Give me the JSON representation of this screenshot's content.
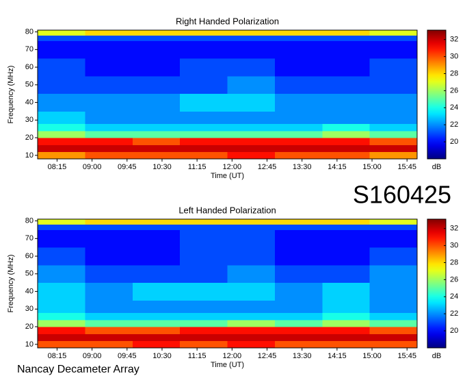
{
  "station_id": "S160425",
  "footer": "Nancay Decameter Array",
  "chart_data": [
    {
      "type": "heatmap",
      "title": "Right Handed Polarization",
      "xlabel": "Time (UT)",
      "ylabel": "Frequency (MHz)",
      "colormap": "jet",
      "colorbar_label": "dB",
      "xbins": [
        470,
        531,
        592,
        653,
        714,
        775,
        836,
        897,
        958
      ],
      "ybins": [
        8,
        12,
        16,
        20,
        24,
        28,
        35,
        45,
        55,
        65,
        75,
        78,
        81
      ],
      "values": [
        [
          29,
          30,
          30,
          30,
          31,
          30,
          30,
          29
        ],
        [
          32,
          32,
          32,
          32,
          32,
          32,
          32,
          32
        ],
        [
          31,
          31,
          30,
          31,
          31,
          31,
          31,
          30
        ],
        [
          26,
          25,
          25,
          25,
          25,
          25,
          26,
          25
        ],
        [
          24,
          23,
          23,
          23,
          23,
          23,
          24,
          23
        ],
        [
          23,
          22,
          22,
          22,
          22,
          22,
          22,
          22
        ],
        [
          22,
          22,
          22,
          23,
          23,
          22,
          22,
          22
        ],
        [
          21,
          21,
          21,
          21,
          22,
          21,
          21,
          21
        ],
        [
          21,
          20,
          20,
          21,
          21,
          20,
          20,
          21
        ],
        [
          20,
          20,
          20,
          20,
          20,
          20,
          20,
          20
        ],
        [
          21,
          21,
          21,
          21,
          21,
          21,
          21,
          21
        ],
        [
          27,
          28,
          28,
          28,
          28,
          28,
          28,
          27
        ]
      ],
      "xlim": [
        470,
        958
      ],
      "ylim": [
        8,
        81
      ],
      "xticks": [
        {
          "value": 495,
          "label": "08:15"
        },
        {
          "value": 540,
          "label": "09:00"
        },
        {
          "value": 585,
          "label": "09:45"
        },
        {
          "value": 630,
          "label": "10:30"
        },
        {
          "value": 675,
          "label": "11:15"
        },
        {
          "value": 720,
          "label": "12:00"
        },
        {
          "value": 765,
          "label": "12:45"
        },
        {
          "value": 810,
          "label": "13:30"
        },
        {
          "value": 855,
          "label": "14:15"
        },
        {
          "value": 900,
          "label": "15:00"
        },
        {
          "value": 945,
          "label": "15:45"
        }
      ],
      "yticks": [
        10,
        20,
        30,
        40,
        50,
        60,
        70,
        80
      ],
      "clim": [
        18,
        33.1
      ],
      "cticks": [
        20,
        22,
        24,
        26,
        28,
        30,
        32
      ]
    },
    {
      "type": "heatmap",
      "title": "Left Handed Polarization",
      "xlabel": "Time (UT)",
      "ylabel": "Frequency (MHz)",
      "colormap": "jet",
      "colorbar_label": "dB",
      "xbins": [
        470,
        531,
        592,
        653,
        714,
        775,
        836,
        897,
        958
      ],
      "ybins": [
        8,
        12,
        16,
        20,
        24,
        28,
        35,
        45,
        55,
        65,
        75,
        78,
        81
      ],
      "values": [
        [
          30,
          30,
          31,
          30,
          31,
          30,
          30,
          30
        ],
        [
          32,
          32,
          32,
          32,
          32,
          32,
          32,
          32
        ],
        [
          31,
          30,
          30,
          31,
          31,
          31,
          31,
          30
        ],
        [
          26,
          25,
          25,
          25,
          26,
          25,
          26,
          25
        ],
        [
          24,
          23,
          23,
          23,
          23,
          23,
          24,
          23
        ],
        [
          23,
          22,
          22,
          22,
          22,
          22,
          23,
          22
        ],
        [
          23,
          22,
          23,
          23,
          23,
          22,
          23,
          22
        ],
        [
          22,
          21,
          21,
          21,
          22,
          21,
          21,
          22
        ],
        [
          21,
          20,
          20,
          21,
          21,
          20,
          20,
          21
        ],
        [
          20,
          20,
          20,
          21,
          21,
          20,
          20,
          20
        ],
        [
          21,
          21,
          21,
          21,
          21,
          21,
          21,
          21
        ],
        [
          27,
          28,
          28,
          28,
          28,
          28,
          28,
          27
        ]
      ],
      "xlim": [
        470,
        958
      ],
      "ylim": [
        8,
        81
      ],
      "xticks": [
        {
          "value": 495,
          "label": "08:15"
        },
        {
          "value": 540,
          "label": "09:00"
        },
        {
          "value": 585,
          "label": "09:45"
        },
        {
          "value": 630,
          "label": "10:30"
        },
        {
          "value": 675,
          "label": "11:15"
        },
        {
          "value": 720,
          "label": "12:00"
        },
        {
          "value": 765,
          "label": "12:45"
        },
        {
          "value": 810,
          "label": "13:30"
        },
        {
          "value": 855,
          "label": "14:15"
        },
        {
          "value": 900,
          "label": "15:00"
        },
        {
          "value": 945,
          "label": "15:45"
        }
      ],
      "yticks": [
        10,
        20,
        30,
        40,
        50,
        60,
        70,
        80
      ],
      "clim": [
        18,
        33.1
      ],
      "cticks": [
        20,
        22,
        24,
        26,
        28,
        30,
        32
      ]
    }
  ]
}
